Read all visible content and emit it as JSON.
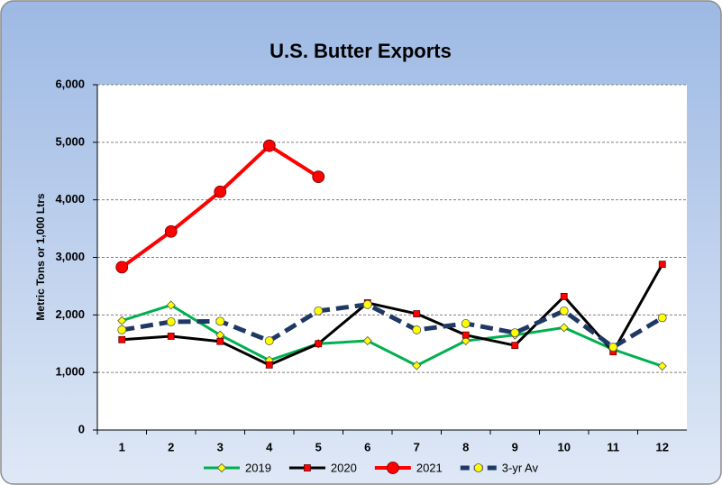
{
  "chart_data": {
    "type": "line",
    "title": "U.S. Butter Exports",
    "ylabel": "Metric Tons or 1,000 Ltrs",
    "categories": [
      "1",
      "2",
      "3",
      "4",
      "5",
      "6",
      "7",
      "8",
      "9",
      "10",
      "11",
      "12"
    ],
    "ylim": [
      0,
      6000
    ],
    "yticks": [
      0,
      {
        "value": 1000,
        "label": "1,000"
      },
      {
        "value": 2000,
        "label": "2,000"
      },
      {
        "value": 3000,
        "label": "3,000"
      },
      {
        "value": 4000,
        "label": "4,000"
      },
      {
        "value": 5000,
        "label": "5,000"
      },
      {
        "value": 6000,
        "label": "6,000"
      }
    ],
    "grid": true,
    "legend": "bottom",
    "series": [
      {
        "name": "2019",
        "color": "#00b050",
        "marker": "diamond",
        "marker_color": "#ffff00",
        "values": [
          1900,
          2170,
          1650,
          1210,
          1500,
          1550,
          1120,
          1550,
          1650,
          1780,
          1400,
          1110
        ]
      },
      {
        "name": "2020",
        "color": "#000000",
        "marker": "square",
        "marker_color": "#ff0000",
        "values": [
          1570,
          1630,
          1540,
          1130,
          1500,
          2210,
          2020,
          1650,
          1470,
          2320,
          1360,
          2880
        ]
      },
      {
        "name": "2021",
        "color": "#ff0000",
        "marker": "circle",
        "marker_color": "#ff0000",
        "values": [
          2830,
          3450,
          4140,
          4940,
          4400,
          null,
          null,
          null,
          null,
          null,
          null,
          null
        ]
      },
      {
        "name": "3-yr Av",
        "color": "#1f3864",
        "marker": "circle",
        "marker_color": "#ffff00",
        "dashed": true,
        "values": [
          1740,
          1880,
          1890,
          1550,
          2070,
          2180,
          1740,
          1850,
          1690,
          2070,
          1440,
          1950
        ]
      }
    ]
  }
}
